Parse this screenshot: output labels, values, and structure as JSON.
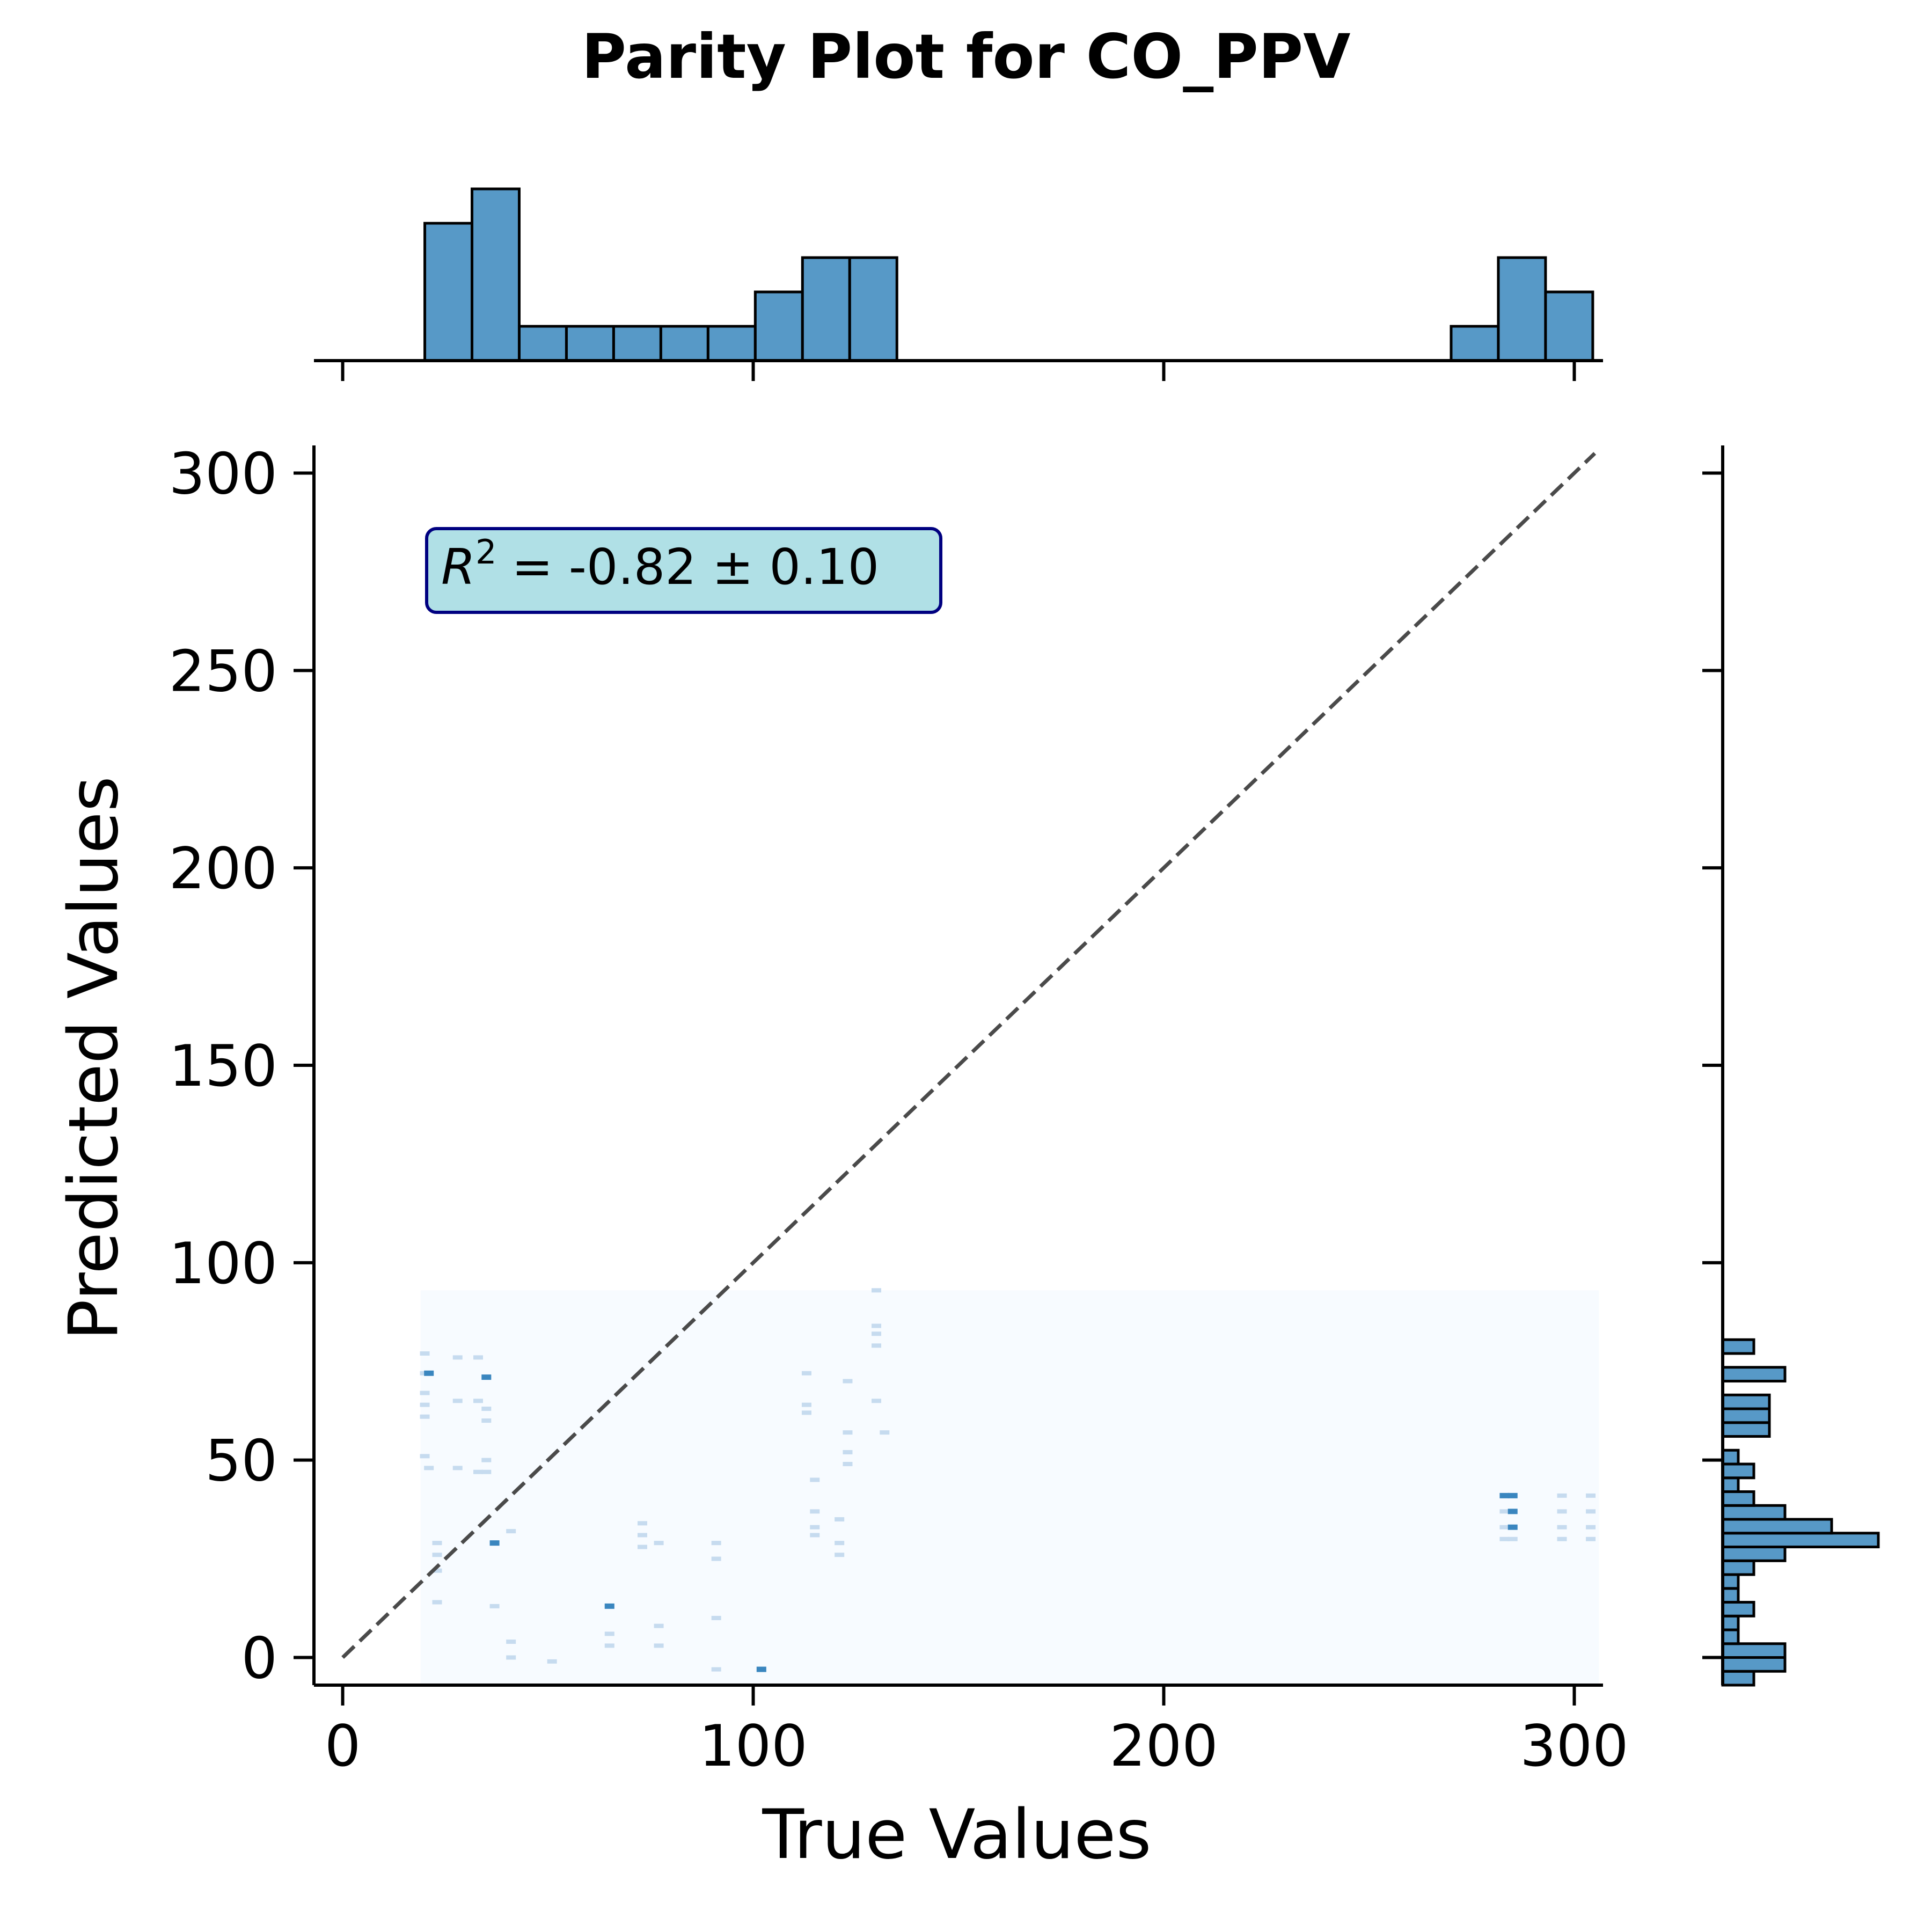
{
  "chart_data": {
    "type": "scatter",
    "title": "Parity Plot for CO_PPV",
    "xlabel": "True Values",
    "ylabel": "Predicted Values",
    "xlim": [
      -7,
      307
    ],
    "ylim": [
      -7,
      307
    ],
    "xticks": [
      0,
      100,
      200,
      300
    ],
    "yticks": [
      0,
      50,
      100,
      150,
      200,
      250,
      300
    ],
    "xtick_labels": [
      "0",
      "100",
      "200",
      "300"
    ],
    "ytick_labels": [
      "0",
      "50",
      "100",
      "150",
      "200",
      "250",
      "300"
    ],
    "parity_line": {
      "x": [
        0,
        305
      ],
      "y": [
        0,
        305
      ],
      "style": "dashed",
      "color": "#4a4a4a"
    },
    "annotation": {
      "text": "= -0.82 ± 0.10",
      "symbol": "R",
      "superscript": "2",
      "location": "top-left",
      "facecolor": "#b0e0e6",
      "edgecolor": "#000080"
    },
    "density_region": {
      "x": [
        19,
        306
      ],
      "y": [
        -7,
        93
      ],
      "color": "#f7fbff"
    },
    "points": [
      {
        "x": 20,
        "y": 77
      },
      {
        "x": 20,
        "y": 72
      },
      {
        "x": 21,
        "y": 72
      },
      {
        "x": 20,
        "y": 67
      },
      {
        "x": 20,
        "y": 64
      },
      {
        "x": 20,
        "y": 61
      },
      {
        "x": 20,
        "y": 51
      },
      {
        "x": 21,
        "y": 48
      },
      {
        "x": 23,
        "y": 29
      },
      {
        "x": 23,
        "y": 26
      },
      {
        "x": 23,
        "y": 22
      },
      {
        "x": 23,
        "y": 14
      },
      {
        "x": 28,
        "y": 76
      },
      {
        "x": 28,
        "y": 65
      },
      {
        "x": 28,
        "y": 48
      },
      {
        "x": 33,
        "y": 76
      },
      {
        "x": 33,
        "y": 65
      },
      {
        "x": 33,
        "y": 47
      },
      {
        "x": 35,
        "y": 71
      },
      {
        "x": 35,
        "y": 63
      },
      {
        "x": 35,
        "y": 60
      },
      {
        "x": 35,
        "y": 50
      },
      {
        "x": 35,
        "y": 47
      },
      {
        "x": 37,
        "y": 29
      },
      {
        "x": 37,
        "y": 13
      },
      {
        "x": 41,
        "y": 32
      },
      {
        "x": 41,
        "y": 4
      },
      {
        "x": 41,
        "y": 0
      },
      {
        "x": 51,
        "y": -1
      },
      {
        "x": 65,
        "y": 13
      },
      {
        "x": 65,
        "y": 6
      },
      {
        "x": 65,
        "y": 3
      },
      {
        "x": 73,
        "y": 34
      },
      {
        "x": 73,
        "y": 31
      },
      {
        "x": 73,
        "y": 28
      },
      {
        "x": 77,
        "y": 29
      },
      {
        "x": 77,
        "y": 8
      },
      {
        "x": 77,
        "y": 3
      },
      {
        "x": 91,
        "y": 29
      },
      {
        "x": 91,
        "y": 25
      },
      {
        "x": 91,
        "y": 10
      },
      {
        "x": 91,
        "y": -3
      },
      {
        "x": 102,
        "y": -3
      },
      {
        "x": 113,
        "y": 72
      },
      {
        "x": 113,
        "y": 64
      },
      {
        "x": 113,
        "y": 62
      },
      {
        "x": 115,
        "y": 45
      },
      {
        "x": 115,
        "y": 37
      },
      {
        "x": 115,
        "y": 33
      },
      {
        "x": 115,
        "y": 31
      },
      {
        "x": 121,
        "y": 35
      },
      {
        "x": 121,
        "y": 29
      },
      {
        "x": 121,
        "y": 26
      },
      {
        "x": 123,
        "y": 70
      },
      {
        "x": 123,
        "y": 57
      },
      {
        "x": 123,
        "y": 52
      },
      {
        "x": 123,
        "y": 49
      },
      {
        "x": 130,
        "y": 93
      },
      {
        "x": 130,
        "y": 84
      },
      {
        "x": 130,
        "y": 82
      },
      {
        "x": 130,
        "y": 79
      },
      {
        "x": 130,
        "y": 65
      },
      {
        "x": 132,
        "y": 57
      },
      {
        "x": 283,
        "y": 41
      },
      {
        "x": 283,
        "y": 37
      },
      {
        "x": 283,
        "y": 33
      },
      {
        "x": 283,
        "y": 30
      },
      {
        "x": 285,
        "y": 41
      },
      {
        "x": 285,
        "y": 37
      },
      {
        "x": 285,
        "y": 33
      },
      {
        "x": 285,
        "y": 30
      },
      {
        "x": 297,
        "y": 41
      },
      {
        "x": 297,
        "y": 37
      },
      {
        "x": 297,
        "y": 33
      },
      {
        "x": 297,
        "y": 30
      },
      {
        "x": 304,
        "y": 41
      },
      {
        "x": 304,
        "y": 37
      },
      {
        "x": 304,
        "y": 33
      },
      {
        "x": 304,
        "y": 30
      }
    ],
    "dense_points": [
      {
        "x": 21,
        "y": 72
      },
      {
        "x": 35,
        "y": 71
      },
      {
        "x": 37,
        "y": 29
      },
      {
        "x": 65,
        "y": 13
      },
      {
        "x": 102,
        "y": -3
      },
      {
        "x": 283,
        "y": 41
      },
      {
        "x": 285,
        "y": 41
      },
      {
        "x": 285,
        "y": 37
      },
      {
        "x": 285,
        "y": 33
      }
    ],
    "marginal_x": {
      "type": "histogram",
      "bins": [
        [
          20,
          31.5,
          4
        ],
        [
          31.5,
          43,
          5
        ],
        [
          43,
          54.5,
          1
        ],
        [
          54.5,
          66,
          1
        ],
        [
          66,
          77.5,
          1
        ],
        [
          77.5,
          89,
          1
        ],
        [
          89,
          100.5,
          1
        ],
        [
          100.5,
          112,
          2
        ],
        [
          112,
          123.5,
          3
        ],
        [
          123.5,
          135,
          3
        ],
        [
          270,
          281.5,
          1
        ],
        [
          281.5,
          293,
          3
        ],
        [
          293,
          304.5,
          2
        ]
      ],
      "max_count": 5,
      "color": "#5799c7"
    },
    "marginal_y": {
      "type": "histogram",
      "bins": [
        [
          -7,
          -3.5,
          2
        ],
        [
          -3.5,
          0,
          4
        ],
        [
          0,
          3.5,
          4
        ],
        [
          3.5,
          7,
          1
        ],
        [
          7,
          10.5,
          1
        ],
        [
          10.5,
          14,
          2
        ],
        [
          14,
          17.5,
          1
        ],
        [
          17.5,
          21,
          1
        ],
        [
          21,
          24.5,
          2
        ],
        [
          24.5,
          28,
          4
        ],
        [
          28,
          31.5,
          10
        ],
        [
          31.5,
          35,
          7
        ],
        [
          35,
          38.5,
          4
        ],
        [
          38.5,
          42,
          2
        ],
        [
          42,
          45.5,
          1
        ],
        [
          45.5,
          49,
          2
        ],
        [
          49,
          52.5,
          1
        ],
        [
          52.5,
          56,
          0
        ],
        [
          56,
          59.5,
          3
        ],
        [
          59.5,
          63,
          3
        ],
        [
          63,
          66.5,
          3
        ],
        [
          66.5,
          70,
          0
        ],
        [
          70,
          73.5,
          4
        ],
        [
          73.5,
          77,
          0
        ],
        [
          77,
          80.5,
          2
        ],
        [
          80.5,
          84,
          0
        ],
        [
          84,
          87.5,
          0
        ],
        [
          87.5,
          91,
          0
        ],
        [
          91,
          94.5,
          0
        ]
      ],
      "max_count": 10,
      "color": "#5799c7"
    }
  }
}
